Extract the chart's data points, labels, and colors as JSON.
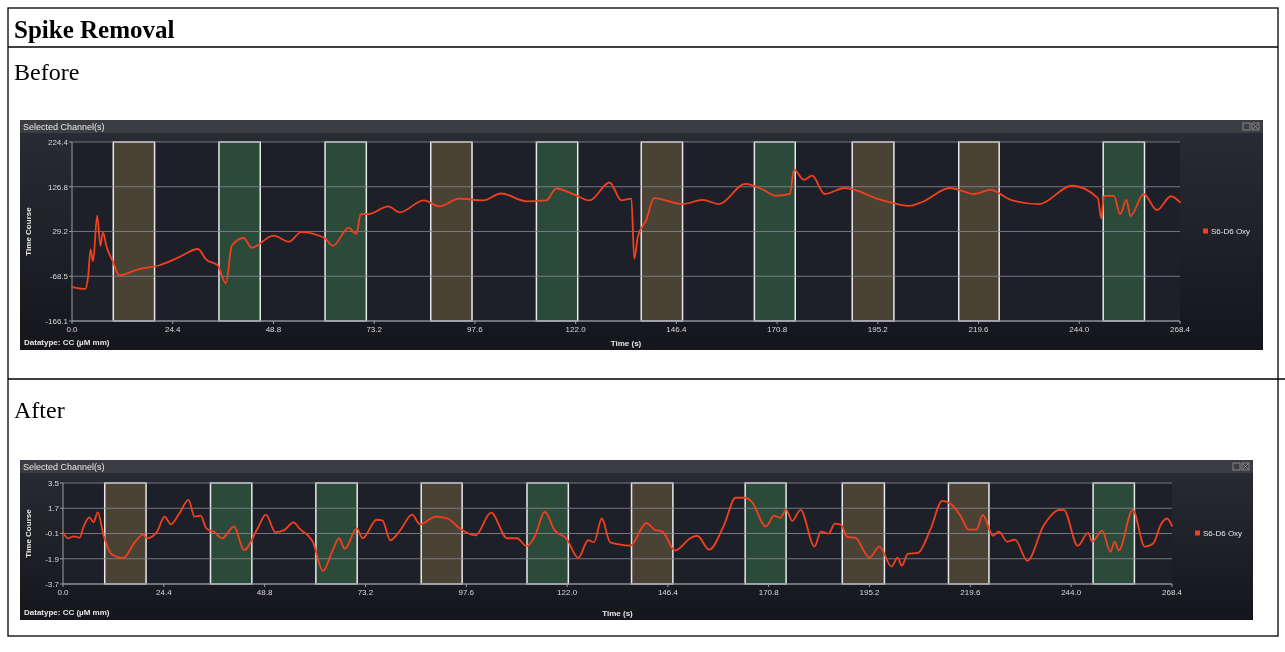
{
  "chart_data": [
    {
      "type": "line",
      "title": "Spike Removal",
      "subtitle": "Before",
      "xlabel": "Time (s)",
      "ylabel": "Time Course",
      "annotations": [
        "Selected Channel(s)",
        "Datatype: CC (µM mm)"
      ],
      "xlim": [
        0,
        268.4
      ],
      "ylim": [
        -166.1,
        224.4
      ],
      "xticks": [
        {
          "value": 0,
          "label": "0.0"
        },
        24.4,
        48.8,
        {
          "value": 73.2,
          "label": "73.2"
        },
        97.6,
        {
          "value": 122,
          "label": "122.0"
        },
        146.4,
        170.8,
        195.2,
        219.6,
        {
          "value": 244,
          "label": "244.0"
        },
        268.4
      ],
      "yticks": [
        224.4,
        126.8,
        29.2,
        -68.5,
        -166.1
      ],
      "grid": "y",
      "legend": "right",
      "bands": [
        {
          "axis": "x",
          "from": 10.0,
          "to": 20.0,
          "color": "#4b4236"
        },
        {
          "axis": "x",
          "from": 35.6,
          "to": 45.6,
          "color": "#2c4a3a"
        },
        {
          "axis": "x",
          "from": 61.3,
          "to": 71.3,
          "color": "#2c4a3a"
        },
        {
          "axis": "x",
          "from": 86.9,
          "to": 96.9,
          "color": "#4b4236"
        },
        {
          "axis": "x",
          "from": 112.5,
          "to": 122.5,
          "color": "#2c4a3a"
        },
        {
          "axis": "x",
          "from": 137.9,
          "to": 147.9,
          "color": "#4b4236"
        },
        {
          "axis": "x",
          "from": 165.3,
          "to": 175.2,
          "color": "#2c4a3a"
        },
        {
          "axis": "x",
          "from": 189.0,
          "to": 199.1,
          "color": "#4b4236"
        },
        {
          "axis": "x",
          "from": 214.8,
          "to": 224.6,
          "color": "#4b4236"
        },
        {
          "axis": "x",
          "from": 249.8,
          "to": 259.8,
          "color": "#2c4a3a"
        }
      ],
      "series": [
        {
          "name": "S6-D6 Oxy",
          "color": "#f2401e",
          "x": [
            0,
            3.2,
            3.9,
            4.5,
            5.1,
            6.1,
            6.9,
            7.5,
            8.3,
            9.9,
            11.4,
            16.2,
            21.0,
            25.7,
            30.5,
            32.5,
            35.3,
            37.3,
            38.7,
            41.6,
            43.5,
            48.8,
            52.6,
            55.5,
            61.2,
            63.2,
            67.0,
            68.9,
            69.9,
            71.8,
            76.6,
            79.4,
            85.2,
            89.0,
            93.8,
            99.6,
            103.9,
            110.1,
            114.9,
            117.3,
            121.6,
            125.4,
            130.2,
            133.1,
            135.5,
            136.2,
            137.1,
            139.1,
            141.0,
            147.9,
            152.8,
            156.7,
            163.1,
            167.5,
            170.5,
            173.9,
            174.9,
            177.3,
            179.3,
            182.3,
            187.2,
            196.0,
            202.9,
            205.8,
            212.7,
            218.6,
            222.5,
            227.4,
            234.3,
            242.2,
            248.5,
            249.3,
            250.0,
            252.4,
            253.9,
            255.4,
            256.4,
            259.6,
            262.8,
            266.2,
            268.4
          ],
          "values": [
            -92,
            -96,
            -70,
            -10,
            -36,
            64,
            -2,
            28,
            -2,
            -36,
            -66,
            -53,
            -45,
            -28,
            -9,
            -32,
            -45,
            -84,
            -2,
            15,
            -6,
            20,
            7,
            28,
            15,
            -2,
            37,
            24,
            67,
            67,
            84,
            71,
            97,
            84,
            101,
            97,
            112,
            95,
            97,
            123,
            110,
            97,
            136,
            97,
            101,
            -30,
            19,
            54,
            102,
            89,
            98,
            89,
            133,
            120,
            107,
            111,
            164,
            142,
            151,
            111,
            124,
            98,
            85,
            93,
            124,
            111,
            120,
            98,
            89,
            129,
            102,
            58,
            107,
            107,
            67,
            98,
            63,
            111,
            76,
            106,
            93
          ]
        }
      ]
    },
    {
      "type": "line",
      "title": "After",
      "xlabel": "Time (s)",
      "ylabel": "Time Course",
      "annotations": [
        "Selected Channel(s)",
        "Datatype: CC (µM mm)"
      ],
      "xlim": [
        0,
        268.4
      ],
      "ylim": [
        -3.7,
        3.5
      ],
      "xticks": [
        {
          "value": 0,
          "label": "0.0"
        },
        24.4,
        48.8,
        {
          "value": 73.2,
          "label": "73.2"
        },
        97.6,
        {
          "value": 122,
          "label": "122.0"
        },
        146.4,
        170.8,
        195.2,
        219.6,
        {
          "value": 244,
          "label": "244.0"
        },
        268.4
      ],
      "yticks": [
        3.5,
        1.7,
        -0.1,
        -1.9,
        -3.7
      ],
      "grid": "y",
      "legend": "right",
      "bands": [
        {
          "axis": "x",
          "from": 10.1,
          "to": 20.1,
          "color": "#4b4236"
        },
        {
          "axis": "x",
          "from": 35.7,
          "to": 45.7,
          "color": "#2c4a3a"
        },
        {
          "axis": "x",
          "from": 61.2,
          "to": 71.2,
          "color": "#2c4a3a"
        },
        {
          "axis": "x",
          "from": 86.7,
          "to": 96.6,
          "color": "#4b4236"
        },
        {
          "axis": "x",
          "from": 112.3,
          "to": 122.3,
          "color": "#2c4a3a"
        },
        {
          "axis": "x",
          "from": 137.6,
          "to": 147.6,
          "color": "#4b4236"
        },
        {
          "axis": "x",
          "from": 165.1,
          "to": 175.0,
          "color": "#2c4a3a"
        },
        {
          "axis": "x",
          "from": 188.6,
          "to": 198.8,
          "color": "#4b4236"
        },
        {
          "axis": "x",
          "from": 214.3,
          "to": 224.1,
          "color": "#4b4236"
        },
        {
          "axis": "x",
          "from": 249.3,
          "to": 259.3,
          "color": "#2c4a3a"
        }
      ],
      "series": [
        {
          "name": "S6-D6 Oxy",
          "color": "#f2401e",
          "x": [
            0,
            1.2,
            2.6,
            4.0,
            5.0,
            6.4,
            7.4,
            8.4,
            9.8,
            11.7,
            14.6,
            17.4,
            19.4,
            20.3,
            22.7,
            24.6,
            26.1,
            28.0,
            30.4,
            31.8,
            33.3,
            34.7,
            36.6,
            38.5,
            41.4,
            43.8,
            47.1,
            49.1,
            51.4,
            53.4,
            55.8,
            57.2,
            60.5,
            62.9,
            65.3,
            66.8,
            68.2,
            71.1,
            72.5,
            75.9,
            77.3,
            79.2,
            81.6,
            84.5,
            86.4,
            90.2,
            93.1,
            96.0,
            99.8,
            103.6,
            107.5,
            109.9,
            112.2,
            114.2,
            116.6,
            119.0,
            121.8,
            124.7,
            127.1,
            128.5,
            130.4,
            132.4,
            134.3,
            137.3,
            141.2,
            143.2,
            145.1,
            148.1,
            152.0,
            153.5,
            156.4,
            159.9,
            162.8,
            165.2,
            166.7,
            170.1,
            172.1,
            173.6,
            175.0,
            176.5,
            178.5,
            181.9,
            183.4,
            185.3,
            186.8,
            188.3,
            189.8,
            191.7,
            195.2,
            197.6,
            200.5,
            202.0,
            203.0,
            204.5,
            206.9,
            209.9,
            212.8,
            214.8,
            217.2,
            219.2,
            221.1,
            222.6,
            225.1,
            226.5,
            228.5,
            230.4,
            233.4,
            237.3,
            241.2,
            242.2,
            245.6,
            248.1,
            249.1,
            251.5,
            253.5,
            254.5,
            255.5,
            258.9,
            261.8,
            263.8,
            265.8,
            267.2,
            268.4
          ],
          "values": [
            0.0,
            -0.44,
            -0.3,
            -0.4,
            0.4,
            1.05,
            0.7,
            1.4,
            -0.2,
            -1.56,
            -1.84,
            -0.72,
            -0.16,
            -0.44,
            0.0,
            1.11,
            0.55,
            1.25,
            2.29,
            1.11,
            1.17,
            0.26,
            0.0,
            -0.44,
            0.4,
            -1.28,
            0.26,
            1.25,
            0.0,
            0.12,
            0.69,
            0.26,
            -0.72,
            -2.77,
            -1.28,
            -0.44,
            -1.2,
            0.26,
            -0.44,
            0.88,
            0.83,
            -0.58,
            0.12,
            1.25,
            0.55,
            1.11,
            0.97,
            0.26,
            -0.24,
            1.39,
            -0.44,
            -0.44,
            -1.0,
            -0.3,
            1.45,
            0.12,
            -0.44,
            -1.84,
            -0.58,
            -0.72,
            0.97,
            -0.72,
            -0.86,
            -0.97,
            0.65,
            0.17,
            0.03,
            -1.31,
            -0.4,
            -0.26,
            -1.25,
            0.45,
            2.45,
            2.45,
            2.16,
            0.4,
            1.17,
            1.02,
            1.59,
            0.8,
            1.59,
            -1.03,
            0.03,
            -0.11,
            0.6,
            0.51,
            -0.34,
            -0.4,
            -1.82,
            -1.03,
            -2.45,
            -1.82,
            -2.39,
            -1.54,
            -1.48,
            0.17,
            2.22,
            2.02,
            1.17,
            0.17,
            0.17,
            1.22,
            -0.26,
            0.03,
            -0.68,
            -0.54,
            -2.05,
            0.45,
            1.59,
            1.59,
            -0.97,
            -0.06,
            -0.68,
            0.11,
            -1.4,
            -0.68,
            -1.31,
            1.59,
            -1.03,
            -0.83,
            0.6,
            0.97,
            0.45
          ]
        }
      ]
    }
  ]
}
